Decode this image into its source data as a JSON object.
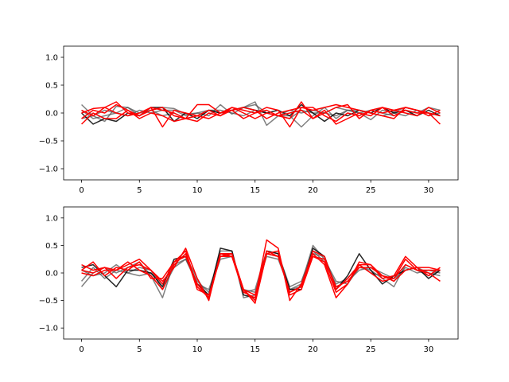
{
  "chart_data": [
    {
      "type": "line",
      "xlim": [
        -1.55,
        32.55
      ],
      "ylim": [
        -1.2,
        1.2
      ],
      "xticks": [
        0,
        5,
        10,
        15,
        20,
        25,
        30
      ],
      "yticks": [
        -1.0,
        -0.5,
        0.0,
        0.5,
        1.0
      ],
      "xtick_labels": [
        "0",
        "5",
        "10",
        "15",
        "20",
        "25",
        "30"
      ],
      "ytick_labels": [
        "−1.0",
        "−0.5",
        "0.0",
        "0.5",
        "1.0"
      ],
      "grid": false,
      "colors": {
        "gray": "#555555",
        "black": "#000000",
        "red": "#ff0000"
      },
      "series": [
        {
          "color": "gray",
          "values": [
            0.15,
            -0.05,
            -0.15,
            0.12,
            0.1,
            -0.05,
            0.05,
            0.1,
            0.08,
            -0.02,
            0.0,
            -0.05,
            0.15,
            -0.02,
            0.1,
            0.2,
            -0.22,
            -0.05,
            -0.05,
            -0.25,
            -0.05,
            0.1,
            -0.1,
            0.05,
            0.0,
            -0.12,
            0.05,
            0.02,
            0.1,
            0.05,
            0.0,
            -0.05
          ]
        },
        {
          "color": "gray",
          "values": [
            0.05,
            -0.1,
            -0.05,
            0.0,
            0.1,
            0.0,
            0.05,
            -0.05,
            0.0,
            -0.1,
            -0.05,
            0.05,
            0.0,
            0.05,
            0.1,
            0.15,
            0.0,
            -0.05,
            0.05,
            0.0,
            0.05,
            0.0,
            0.1,
            0.05,
            0.0,
            0.05,
            0.0,
            -0.05,
            0.05,
            0.0,
            0.1,
            0.05
          ]
        },
        {
          "color": "gray",
          "values": [
            -0.1,
            -0.05,
            0.05,
            0.0,
            -0.05,
            0.05,
            0.0,
            0.05,
            0.05,
            -0.05,
            0.0,
            0.05,
            0.05,
            0.0,
            -0.05,
            0.05,
            0.0,
            -0.05,
            -0.1,
            0.05,
            0.0,
            0.0,
            -0.05,
            0.05,
            0.05,
            0.0,
            -0.05,
            0.0,
            -0.05,
            0.05,
            -0.05,
            0.0
          ]
        },
        {
          "color": "black",
          "values": [
            0.0,
            -0.2,
            -0.1,
            -0.15,
            0.0,
            -0.05,
            0.1,
            0.1,
            -0.15,
            0.0,
            -0.1,
            0.05,
            0.0,
            0.05,
            0.1,
            0.05,
            0.0,
            0.05,
            -0.05,
            0.15,
            0.0,
            -0.15,
            0.0,
            -0.05,
            0.05,
            0.0,
            0.1,
            0.0,
            0.05,
            -0.05,
            0.05,
            -0.05
          ]
        },
        {
          "color": "red",
          "values": [
            0.0,
            0.08,
            0.1,
            0.2,
            0.0,
            -0.05,
            0.05,
            0.1,
            -0.05,
            -0.1,
            -0.15,
            0.0,
            -0.05,
            0.05,
            0.1,
            0.05,
            -0.1,
            0.0,
            0.05,
            0.1,
            0.05,
            0.1,
            0.15,
            0.1,
            0.05,
            0.0,
            -0.05,
            -0.1,
            0.1,
            0.05,
            0.0,
            -0.05
          ]
        },
        {
          "color": "red",
          "values": [
            -0.1,
            0.05,
            0.0,
            0.15,
            0.05,
            -0.05,
            0.1,
            0.05,
            0.0,
            -0.1,
            0.15,
            0.15,
            0.0,
            0.1,
            0.05,
            0.0,
            0.1,
            0.05,
            -0.25,
            0.1,
            0.1,
            -0.05,
            -0.15,
            0.0,
            -0.05,
            0.05,
            0.0,
            0.05,
            0.1,
            0.05,
            -0.05,
            0.05
          ]
        },
        {
          "color": "red",
          "values": [
            -0.2,
            0.0,
            -0.1,
            -0.1,
            0.05,
            -0.1,
            0.0,
            -0.05,
            -0.15,
            -0.1,
            -0.05,
            -0.1,
            0.0,
            0.05,
            -0.1,
            0.0,
            0.05,
            -0.05,
            -0.1,
            0.2,
            -0.1,
            0.05,
            -0.2,
            -0.1,
            0.0,
            -0.05,
            0.1,
            -0.05,
            0.05,
            0.0,
            0.0,
            -0.2
          ]
        },
        {
          "color": "red",
          "values": [
            0.05,
            -0.05,
            0.1,
            0.0,
            -0.05,
            0.0,
            0.1,
            -0.25,
            0.05,
            0.0,
            -0.05,
            0.05,
            -0.05,
            0.1,
            0.0,
            -0.1,
            0.0,
            -0.05,
            0.0,
            0.05,
            -0.1,
            0.0,
            0.1,
            0.15,
            -0.1,
            0.05,
            0.1,
            0.05,
            0.0,
            -0.05,
            0.1,
            0.0
          ]
        }
      ]
    },
    {
      "type": "line",
      "xlim": [
        -1.55,
        32.55
      ],
      "ylim": [
        -1.2,
        1.2
      ],
      "xticks": [
        0,
        5,
        10,
        15,
        20,
        25,
        30
      ],
      "yticks": [
        -1.0,
        -0.5,
        0.0,
        0.5,
        1.0
      ],
      "xtick_labels": [
        "0",
        "5",
        "10",
        "15",
        "20",
        "25",
        "30"
      ],
      "ytick_labels": [
        "−1.0",
        "−0.5",
        "0.0",
        "0.5",
        "1.0"
      ],
      "grid": false,
      "colors": {
        "gray": "#555555",
        "black": "#000000",
        "red": "#ff0000"
      },
      "series": [
        {
          "color": "gray",
          "values": [
            -0.25,
            0.0,
            0.1,
            0.0,
            0.1,
            0.2,
            -0.05,
            -0.45,
            0.2,
            0.3,
            -0.1,
            -0.45,
            0.4,
            0.4,
            -0.45,
            -0.4,
            0.35,
            0.3,
            -0.3,
            -0.2,
            0.5,
            0.25,
            -0.15,
            -0.2,
            0.1,
            0.05,
            -0.1,
            -0.25,
            0.15,
            0.05,
            -0.05,
            0.05
          ]
        },
        {
          "color": "gray",
          "values": [
            -0.15,
            0.1,
            -0.1,
            0.05,
            0.0,
            0.1,
            0.05,
            -0.3,
            0.1,
            0.25,
            -0.2,
            -0.3,
            0.3,
            0.35,
            -0.35,
            -0.3,
            0.4,
            0.35,
            -0.25,
            -0.15,
            0.4,
            0.2,
            -0.2,
            -0.1,
            0.15,
            0.0,
            -0.05,
            -0.15,
            0.1,
            0.0,
            0.05,
            0.0
          ]
        },
        {
          "color": "gray",
          "values": [
            0.05,
            -0.05,
            0.0,
            0.15,
            0.0,
            -0.05,
            0.0,
            -0.2,
            0.15,
            0.25,
            -0.15,
            -0.35,
            0.25,
            0.3,
            -0.3,
            -0.35,
            0.3,
            0.25,
            -0.3,
            -0.25,
            0.35,
            0.3,
            -0.25,
            -0.15,
            0.05,
            0.1,
            0.0,
            -0.1,
            0.05,
            0.1,
            0.0,
            -0.05
          ]
        },
        {
          "color": "black",
          "values": [
            0.1,
            0.15,
            -0.05,
            -0.25,
            0.05,
            0.05,
            0.0,
            -0.25,
            0.25,
            0.3,
            -0.2,
            -0.4,
            0.45,
            0.4,
            -0.4,
            -0.45,
            0.4,
            0.35,
            -0.3,
            -0.3,
            0.45,
            0.3,
            -0.3,
            -0.05,
            0.35,
            0.05,
            -0.2,
            -0.05,
            0.05,
            0.1,
            -0.1,
            0.05
          ]
        },
        {
          "color": "red",
          "values": [
            0.15,
            0.05,
            0.1,
            0.05,
            0.15,
            0.25,
            0.05,
            -0.15,
            0.1,
            0.45,
            -0.1,
            -0.5,
            0.35,
            0.35,
            -0.3,
            -0.55,
            0.35,
            0.3,
            -0.35,
            -0.25,
            0.4,
            0.3,
            -0.3,
            -0.1,
            0.15,
            0.15,
            -0.05,
            -0.15,
            0.05,
            0.1,
            0.1,
            0.05
          ]
        },
        {
          "color": "red",
          "values": [
            0.05,
            0.2,
            -0.05,
            0.1,
            0.05,
            0.2,
            -0.1,
            -0.1,
            0.2,
            0.4,
            -0.25,
            -0.45,
            0.3,
            0.3,
            -0.35,
            -0.45,
            0.6,
            0.45,
            -0.5,
            -0.2,
            0.35,
            0.15,
            -0.45,
            -0.2,
            0.2,
            0.15,
            -0.1,
            -0.05,
            0.3,
            0.1,
            -0.05,
            0.1
          ]
        },
        {
          "color": "red",
          "values": [
            0.0,
            -0.05,
            0.05,
            0.05,
            0.2,
            0.05,
            -0.05,
            -0.3,
            0.15,
            0.35,
            -0.3,
            -0.4,
            0.3,
            0.35,
            -0.3,
            -0.5,
            0.35,
            0.4,
            -0.4,
            -0.3,
            0.3,
            0.2,
            -0.35,
            -0.2,
            0.15,
            0.0,
            -0.15,
            -0.1,
            0.25,
            0.05,
            0.0,
            -0.15
          ]
        },
        {
          "color": "red",
          "values": [
            0.05,
            0.0,
            0.1,
            -0.1,
            0.1,
            0.15,
            0.05,
            -0.2,
            0.2,
            0.3,
            -0.2,
            -0.45,
            0.35,
            0.3,
            -0.3,
            -0.4,
            0.4,
            0.3,
            -0.35,
            -0.25,
            0.3,
            0.25,
            -0.25,
            -0.15,
            0.1,
            0.1,
            -0.05,
            -0.1,
            0.15,
            0.05,
            0.05,
            0.05
          ]
        }
      ]
    }
  ]
}
